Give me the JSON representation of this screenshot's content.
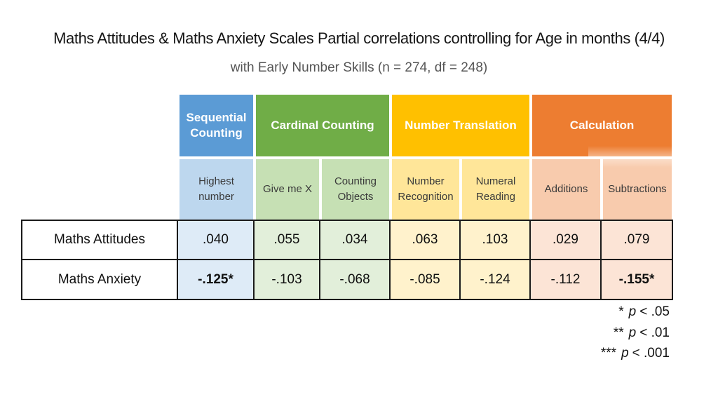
{
  "slide": {
    "title": "Maths Attitudes & Maths Anxiety Scales Partial correlations controlling for Age in months (4/4)",
    "subtitle": "with Early Number Skills (n = 274, df = 248)"
  },
  "chart_data": {
    "type": "table",
    "column_groups": [
      {
        "label": "Sequential Counting",
        "color": "#5B9BD5",
        "columns": [
          "Highest number"
        ]
      },
      {
        "label": "Cardinal Counting",
        "color": "#70AD47",
        "columns": [
          "Give me X",
          "Counting Objects"
        ]
      },
      {
        "label": "Number Translation",
        "color": "#FFC000",
        "columns": [
          "Number Recognition",
          "Numeral Reading"
        ]
      },
      {
        "label": "Calculation",
        "color": "#ED7D31",
        "columns": [
          "Additions",
          "Subtractions"
        ]
      }
    ],
    "sub_columns": [
      {
        "label": "Highest number",
        "header_bg": "#BDD7EE",
        "cell_bg": "#DEEBF7"
      },
      {
        "label": "Give me X",
        "header_bg": "#C6E0B4",
        "cell_bg": "#E2EFDA"
      },
      {
        "label": "Counting Objects",
        "header_bg": "#C6E0B4",
        "cell_bg": "#E2EFDA"
      },
      {
        "label": "Number Recognition",
        "header_bg": "#FFE699",
        "cell_bg": "#FFF2CC"
      },
      {
        "label": "Numeral Reading",
        "header_bg": "#FFE699",
        "cell_bg": "#FFF2CC"
      },
      {
        "label": "Additions",
        "header_bg": "#F8CBAD",
        "cell_bg": "#FCE4D6"
      },
      {
        "label": "Subtractions",
        "header_bg": "#F8CBAD",
        "cell_bg": "#FCE4D6"
      }
    ],
    "rows": [
      {
        "label": "Maths Attitudes",
        "values": [
          ".040",
          ".055",
          ".034",
          ".063",
          ".103",
          ".029",
          ".079"
        ],
        "bold_indices": []
      },
      {
        "label": "Maths Anxiety",
        "values": [
          "-.125*",
          "-.103",
          "-.068",
          "-.085",
          "-.124",
          "-.112",
          "-.155*"
        ],
        "bold_indices": [
          0,
          6
        ]
      }
    ]
  },
  "notes": [
    {
      "stars": "*",
      "p": "p",
      "comparison": "< .05"
    },
    {
      "stars": "**",
      "p": "p",
      "comparison": "< .01"
    },
    {
      "stars": "***",
      "p": "p",
      "comparison": "< .001"
    }
  ]
}
